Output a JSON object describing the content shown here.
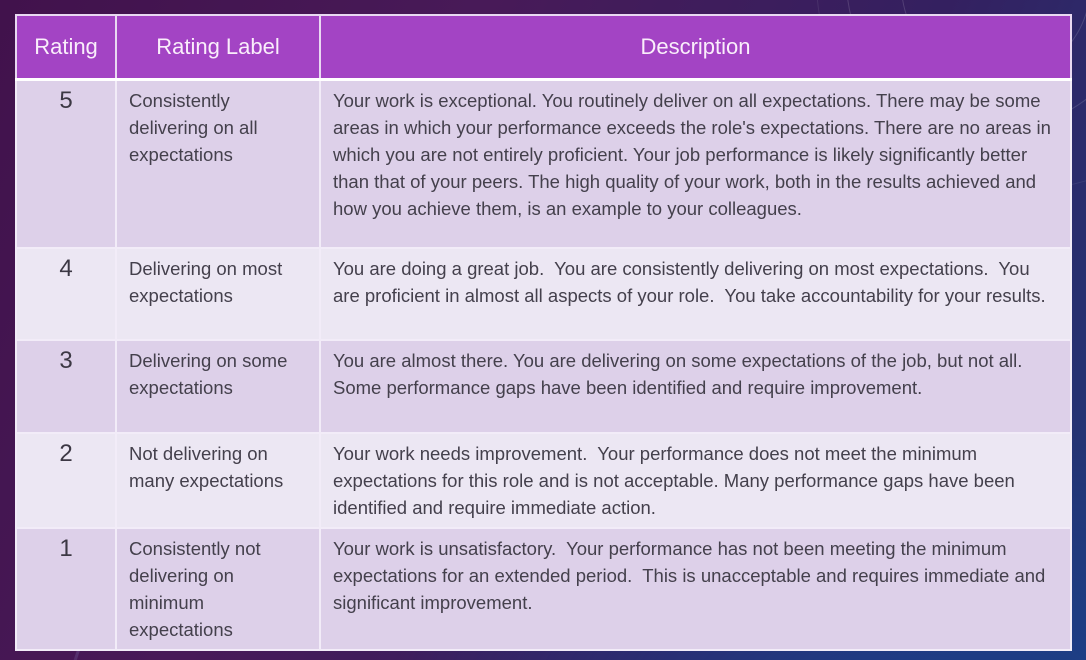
{
  "table": {
    "headers": {
      "rating": "Rating",
      "label": "Rating Label",
      "description": "Description"
    },
    "rows": [
      {
        "rating": "5",
        "label": "Consistently delivering on all expectations",
        "description": "Your work is exceptional. You routinely deliver on all expectations. There may be some areas in which your performance exceeds the role's expectations. There are no areas in which you are not entirely proficient. Your job performance is likely significantly better than that of your peers. The high quality of your work, both in the results achieved and how you achieve them, is an example to your colleagues."
      },
      {
        "rating": "4",
        "label": "Delivering on most expectations",
        "description": "You are doing a great job.  You are consistently delivering on most expectations.  You are proficient in almost all aspects of your role.  You take accountability for your results."
      },
      {
        "rating": "3",
        "label": "Delivering on some expectations",
        "description": "You are almost there. You are delivering on some expectations of the job, but not all. Some performance gaps have been identified and require improvement."
      },
      {
        "rating": "2",
        "label": "Not delivering on many expectations",
        "description": "Your work needs improvement.  Your performance does not meet the minimum expectations for this role and is not acceptable. Many performance gaps have been identified and require immediate action."
      },
      {
        "rating": "1",
        "label": "Consistently not delivering on minimum expectations",
        "description": "Your work is unsatisfactory.  Your performance has not been meeting the minimum expectations for an extended period.  This is unacceptable and requires immediate and significant improvement."
      }
    ]
  },
  "colors": {
    "header_bg": "#a344c4",
    "header_text": "#faeefb",
    "row_odd_bg": "#ddd0e9",
    "row_even_bg": "#ece7f3",
    "body_text": "#44404c",
    "cell_border": "#f2ecf8",
    "background_purple": "#41124c",
    "background_navy": "#203a7a"
  }
}
